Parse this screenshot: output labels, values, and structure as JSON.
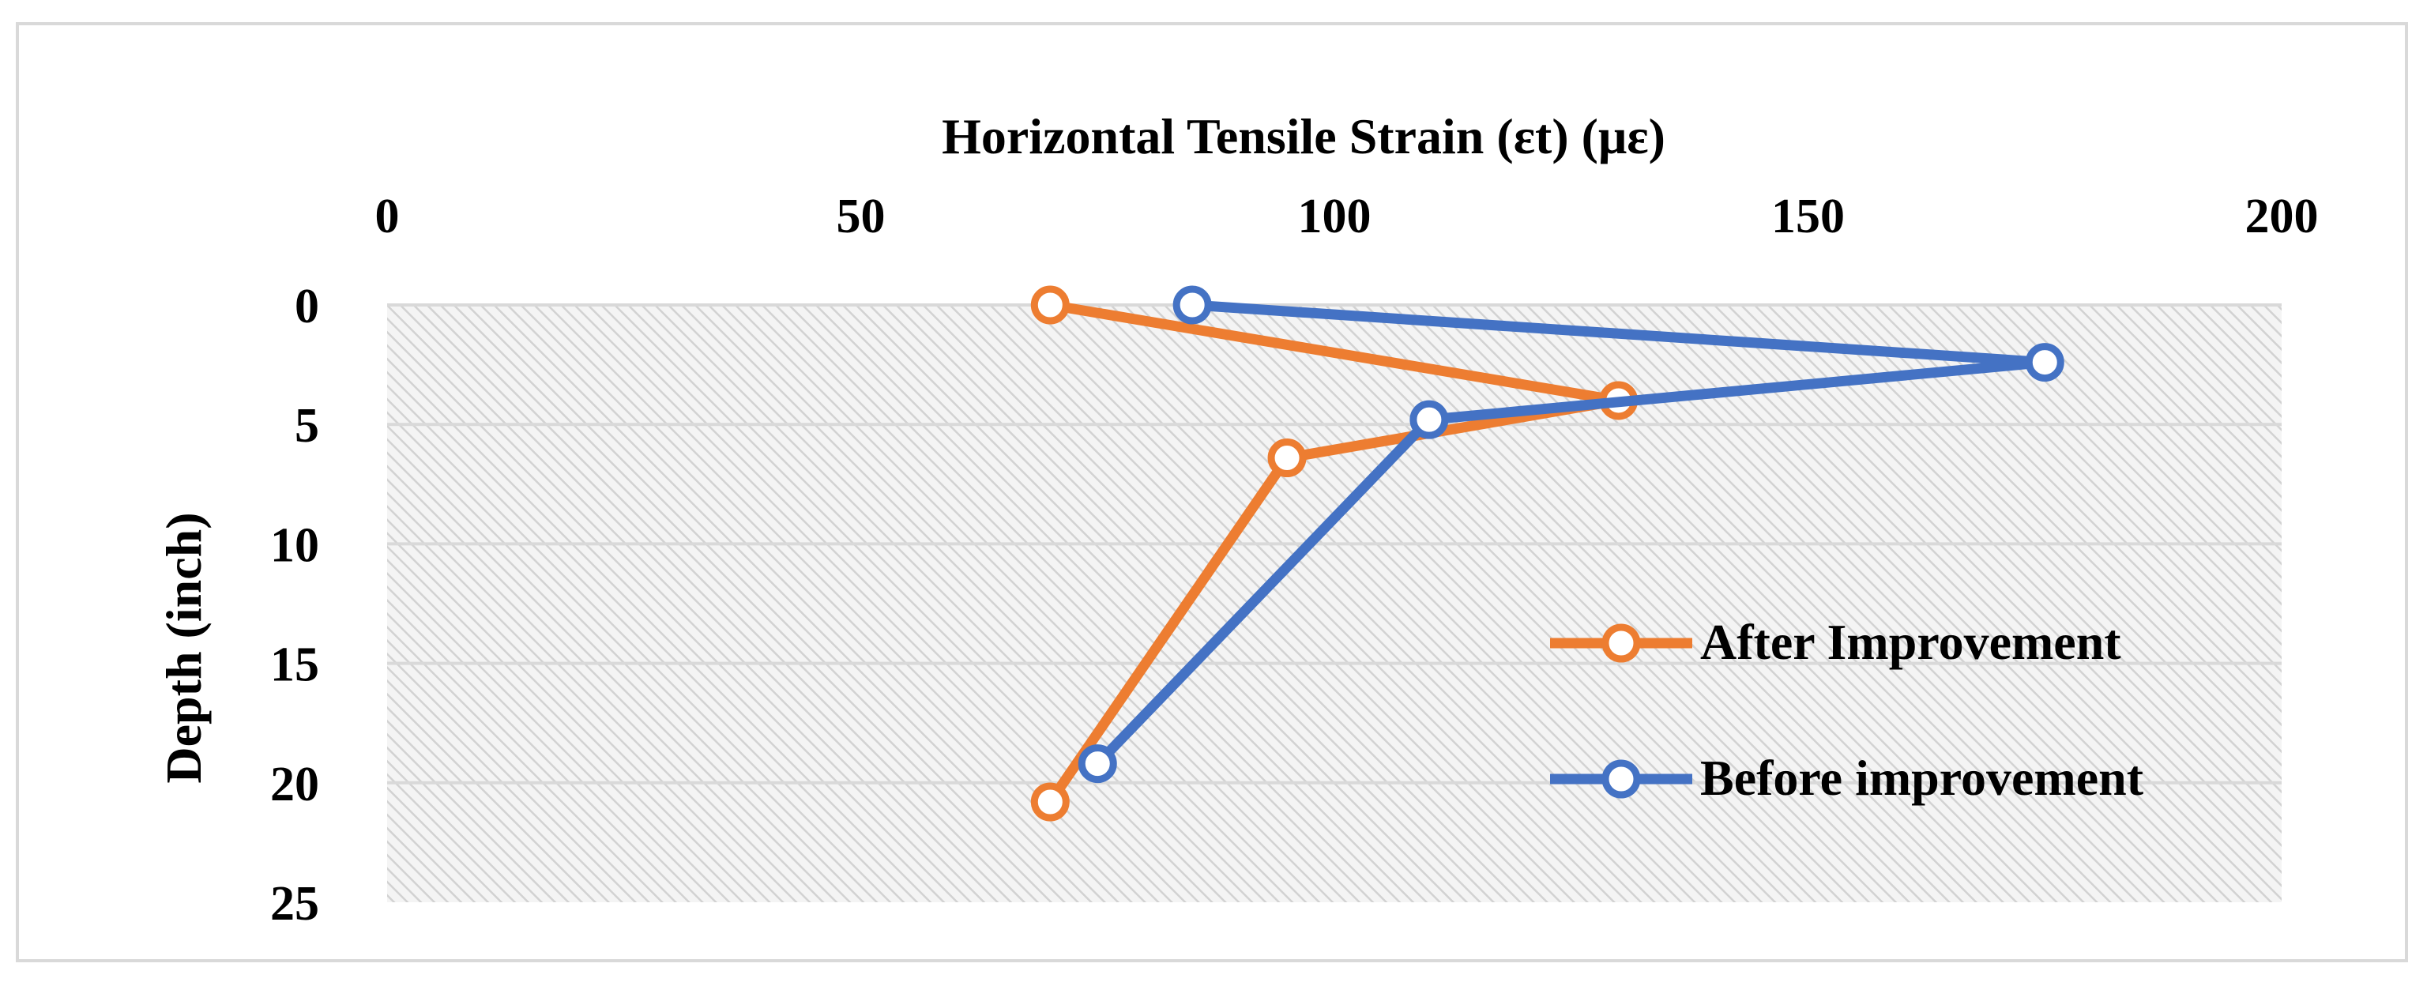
{
  "chart_data": {
    "type": "line",
    "title": "",
    "xlabel": "Horizontal Tensile Strain (εt) (με)",
    "ylabel": "Depth (inch)",
    "xlim": [
      0,
      200
    ],
    "ylim": [
      0,
      25
    ],
    "y_inverted": true,
    "x_axis_position": "top",
    "x_ticks": [
      "0",
      "50",
      "100",
      "150",
      "200"
    ],
    "y_ticks": [
      "0",
      "5",
      "10",
      "15",
      "20",
      "25"
    ],
    "grid": "horizontal",
    "plot_background": "light gray diagonal hatch",
    "legend_position": "right",
    "series": [
      {
        "name": "After Improvement",
        "color": "#ed7d31",
        "marker": "hollow-circle",
        "points": [
          {
            "x": 70,
            "y": 0
          },
          {
            "x": 130,
            "y": 4
          },
          {
            "x": 95,
            "y": 6.4
          },
          {
            "x": 70,
            "y": 20.8
          }
        ]
      },
      {
        "name": "Before improvement",
        "color": "#4472c4",
        "marker": "hollow-circle",
        "points": [
          {
            "x": 85,
            "y": 0
          },
          {
            "x": 175,
            "y": 2.4
          },
          {
            "x": 110,
            "y": 4.8
          },
          {
            "x": 75,
            "y": 19.2
          }
        ]
      }
    ]
  }
}
